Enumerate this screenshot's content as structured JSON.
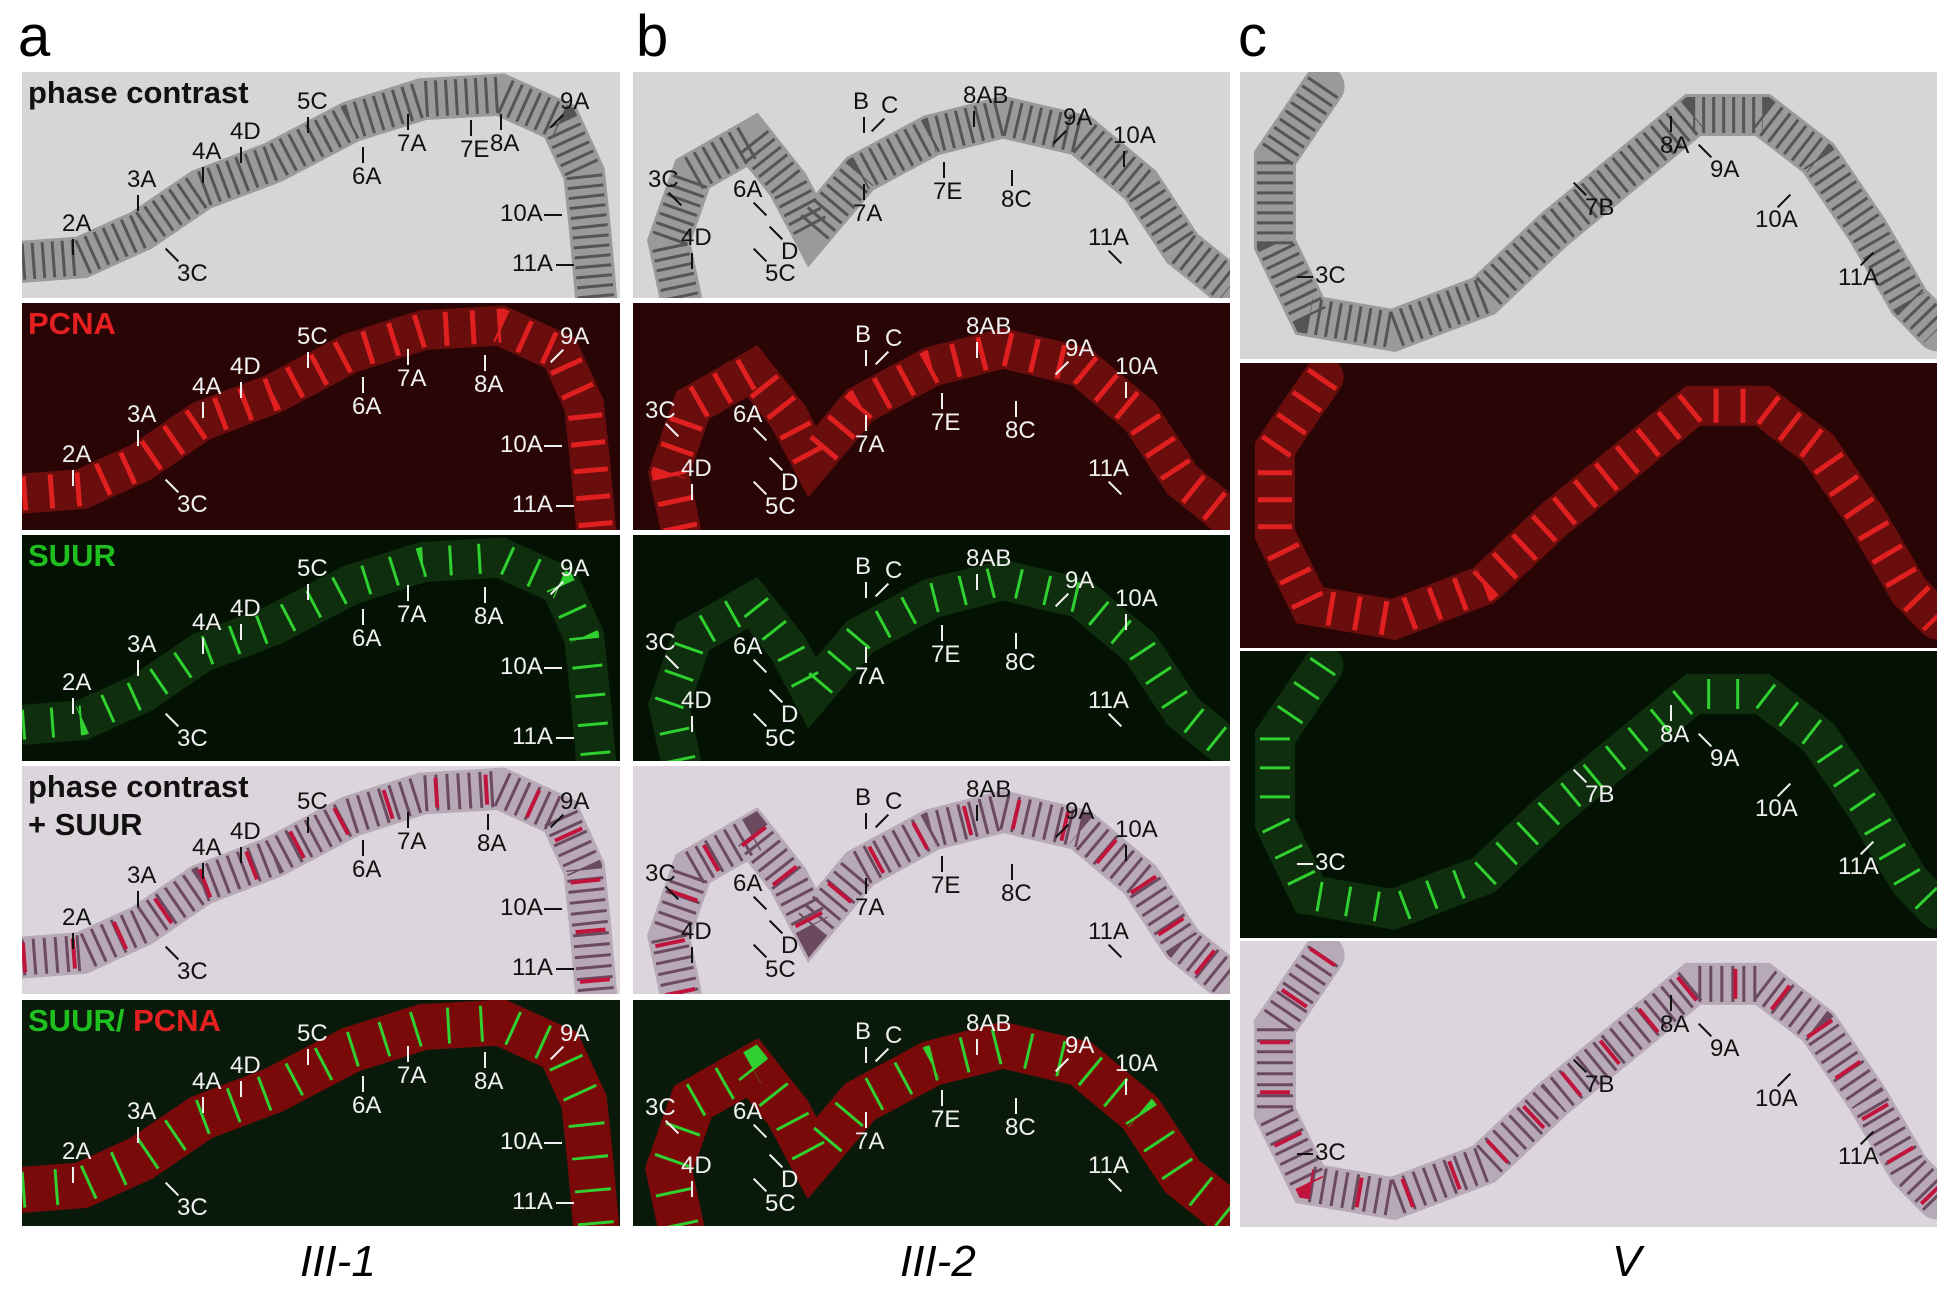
{
  "columns": [
    {
      "letter": "a",
      "caption": "III-1",
      "panels": [
        {
          "kind": "phase",
          "title": [
            "phase contrast"
          ],
          "labels": [
            "9A",
            "5C",
            "4D",
            "4A",
            "3A",
            "2A",
            "3C",
            "6A",
            "7A",
            "7E",
            "8A",
            "10A",
            "11A"
          ]
        },
        {
          "kind": "pcna",
          "title": [
            "PCNA"
          ],
          "labels": [
            "5C",
            "9A",
            "4D",
            "4A",
            "7A",
            "8A",
            "6A",
            "3A",
            "2A",
            "10A",
            "3C",
            "11A"
          ]
        },
        {
          "kind": "suur",
          "title": [
            "SUUR"
          ],
          "labels": [
            "5C",
            "9A",
            "4D",
            "4A",
            "7A",
            "8A",
            "3A",
            "6A",
            "10A",
            "2A",
            "11A",
            "3C"
          ]
        },
        {
          "kind": "merge",
          "title": [
            "phase contrast",
            "+ SUUR"
          ],
          "labels": [
            "5C",
            "9A",
            "4D",
            "4A",
            "7A",
            "8A",
            "3A",
            "6A",
            "10A",
            "2A",
            "11A",
            "3C"
          ]
        },
        {
          "kind": "combo",
          "title": [
            "SUUR/ ",
            "PCNA"
          ],
          "labels": [
            "5C",
            "9A",
            "4D",
            "4A",
            "7A",
            "8A",
            "6A",
            "3A",
            "10A",
            "2A",
            "11A",
            "3C"
          ]
        }
      ]
    },
    {
      "letter": "b",
      "caption": "III-2",
      "panels": [
        {
          "kind": "phase",
          "title": [],
          "labels": [
            "B",
            "C",
            "8AB",
            "9A",
            "10A",
            "3C",
            "6A",
            "7A",
            "7E",
            "8C",
            "11A",
            "4D",
            "D",
            "5C"
          ]
        },
        {
          "kind": "pcna",
          "title": [],
          "labels": [
            "B",
            "C",
            "8AB",
            "9A",
            "10A",
            "3C",
            "6A",
            "7E",
            "8C",
            "7A",
            "11A",
            "4D",
            "D",
            "5C"
          ]
        },
        {
          "kind": "suur",
          "title": [],
          "labels": [
            "B",
            "C",
            "8AB",
            "9A",
            "10A",
            "3C",
            "6A",
            "7E",
            "8C",
            "7A",
            "11A",
            "4D",
            "D",
            "5C"
          ]
        },
        {
          "kind": "merge",
          "title": [],
          "labels": [
            "B",
            "C",
            "8AB",
            "9A",
            "10A",
            "3C",
            "6A",
            "7A",
            "7E",
            "8C",
            "11A",
            "4D",
            "D",
            "5C"
          ]
        },
        {
          "kind": "combo",
          "title": [],
          "labels": [
            "B",
            "C",
            "8AB",
            "9A",
            "10A",
            "3C",
            "6A",
            "7E",
            "8C",
            "7A",
            "11A",
            "4D",
            "D",
            "5C"
          ]
        }
      ]
    },
    {
      "letter": "c",
      "caption": "V",
      "panels": [
        {
          "kind": "phase",
          "title": [],
          "labels": [
            "8A",
            "9A",
            "7B",
            "10A",
            "3C",
            "11A"
          ]
        },
        {
          "kind": "pcna",
          "title": [],
          "labels": []
        },
        {
          "kind": "suur",
          "title": [],
          "labels": [
            "8A",
            "9A",
            "7B",
            "10A",
            "3C",
            "11A"
          ]
        },
        {
          "kind": "merge",
          "title": [],
          "labels": [
            "8A",
            "9A",
            "7B",
            "10A",
            "3C",
            "11A"
          ]
        }
      ]
    }
  ],
  "colors": {
    "phase_bg": "#d6d6d6",
    "merge_bg": "#dcd6dc",
    "pcna_bg": "#2a0505",
    "suur_bg": "#041204",
    "combo_bg": "#0a1a0a",
    "pcna_text": "#e62020",
    "suur_text": "#1fbf1f"
  }
}
